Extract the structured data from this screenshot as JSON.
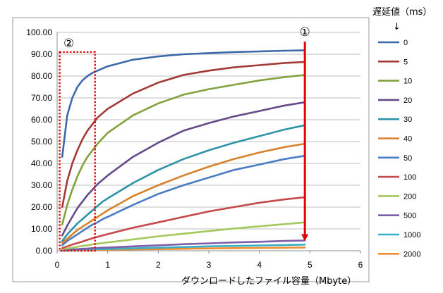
{
  "chart_data": {
    "type": "line",
    "title": "",
    "xlabel": "ダウンロードしたファイル容量（Mbyte）",
    "ylabel": "",
    "xlim": [
      0,
      6
    ],
    "ylim": [
      0,
      100
    ],
    "x_ticks": [
      "0",
      "1",
      "2",
      "3",
      "4",
      "5",
      "6"
    ],
    "y_ticks": [
      "0.00",
      "10.00",
      "20.00",
      "30.00",
      "40.00",
      "50.00",
      "60.00",
      "70.00",
      "80.00",
      "90.00",
      "100.00"
    ],
    "grid": "horizontal",
    "legend_title": "遅延値（ms）",
    "legend_arrow": "↓",
    "legend_position": "right",
    "x": [
      0.1,
      0.2,
      0.3,
      0.4,
      0.5,
      0.6,
      0.7,
      0.8,
      0.9,
      1.0,
      1.5,
      2.0,
      2.5,
      3.0,
      3.5,
      4.0,
      4.5,
      4.9
    ],
    "series": [
      {
        "name": "0",
        "color": "#3c6aa8",
        "values": [
          43,
          62,
          70,
          75,
          78,
          80,
          81.5,
          82.5,
          83.5,
          84.5,
          87.5,
          89,
          90,
          90.5,
          91,
          91.3,
          91.6,
          91.8
        ]
      },
      {
        "name": "5",
        "color": "#a33a36",
        "values": [
          20,
          32,
          40,
          46,
          51,
          55,
          58,
          61,
          63,
          65,
          72,
          77,
          80.5,
          82.5,
          84,
          85,
          86,
          86.5
        ]
      },
      {
        "name": "10",
        "color": "#83a13d",
        "values": [
          12,
          21,
          28,
          34,
          39,
          43,
          46,
          49,
          51.5,
          54,
          62,
          67.5,
          71.5,
          74,
          76,
          78,
          79.5,
          80.5
        ]
      },
      {
        "name": "20",
        "color": "#664a8a",
        "values": [
          7,
          11.5,
          15.5,
          19.5,
          22.5,
          25.5,
          28,
          30.5,
          32.5,
          34.5,
          43,
          49.5,
          55,
          58.5,
          61.5,
          64,
          66.5,
          68
        ]
      },
      {
        "name": "30",
        "color": "#2f93a8",
        "values": [
          4.5,
          7.5,
          10,
          12.5,
          14.5,
          16.5,
          18.5,
          20.5,
          22.5,
          24,
          31,
          37,
          42,
          46,
          49.5,
          52.5,
          55.5,
          57.5
        ]
      },
      {
        "name": "40",
        "color": "#d8822d",
        "values": [
          3.5,
          5.5,
          7.5,
          9.5,
          11,
          12.5,
          14,
          15.5,
          17,
          18.5,
          25,
          30,
          34.5,
          38.5,
          42,
          45,
          47.5,
          49
        ]
      },
      {
        "name": "50",
        "color": "#4a7cc4",
        "values": [
          2.5,
          4.5,
          6,
          7.5,
          9,
          10.5,
          12,
          13,
          14.5,
          15.5,
          21,
          26,
          30,
          33.5,
          37,
          39.5,
          42,
          43.5
        ]
      },
      {
        "name": "100",
        "color": "#c5494a",
        "values": [
          1.2,
          2,
          2.8,
          3.5,
          4.2,
          5,
          5.7,
          6.4,
          7,
          7.6,
          10.5,
          13,
          15.5,
          18,
          20,
          22,
          23.5,
          24.5
        ]
      },
      {
        "name": "200",
        "color": "#a4c95e",
        "values": [
          0.6,
          1,
          1.4,
          1.8,
          2.2,
          2.5,
          2.9,
          3.2,
          3.5,
          3.8,
          5.2,
          6.6,
          7.8,
          9,
          10.2,
          11.2,
          12.2,
          13
        ]
      },
      {
        "name": "500",
        "color": "#7d5ea8",
        "values": [
          0.2,
          0.4,
          0.6,
          0.7,
          0.9,
          1,
          1.2,
          1.3,
          1.4,
          1.5,
          2,
          2.5,
          3,
          3.4,
          3.8,
          4.1,
          4.5,
          4.7
        ]
      },
      {
        "name": "1000",
        "color": "#3aaec4",
        "values": [
          0.1,
          0.2,
          0.3,
          0.4,
          0.5,
          0.5,
          0.6,
          0.7,
          0.7,
          0.8,
          1.1,
          1.4,
          1.7,
          2,
          2.2,
          2.4,
          2.6,
          2.8
        ]
      },
      {
        "name": "2000",
        "color": "#f08c30",
        "values": [
          0.05,
          0.1,
          0.15,
          0.2,
          0.25,
          0.3,
          0.33,
          0.37,
          0.4,
          0.45,
          0.6,
          0.75,
          0.9,
          1.05,
          1.2,
          1.3,
          1.4,
          1.5
        ]
      }
    ],
    "annotations": [
      {
        "label": "①",
        "type": "arrow",
        "color": "#e30000",
        "x": 4.9,
        "y_from": 99,
        "y_to": 5
      },
      {
        "label": "②",
        "type": "dotted-box",
        "color": "#e30000",
        "x_range": [
          0.05,
          0.75
        ],
        "y_range": [
          0,
          91
        ]
      }
    ]
  }
}
